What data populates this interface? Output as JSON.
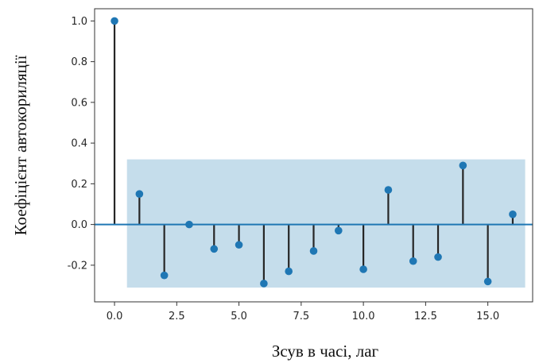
{
  "chart_data": {
    "type": "stem",
    "xlabel": "Зсув в часі, лаг",
    "ylabel": "Коефіцієнт автокориляції",
    "xlim": [
      -0.8,
      16.8
    ],
    "ylim": [
      -0.38,
      1.06
    ],
    "x_ticks": [
      0,
      2.5,
      5,
      7.5,
      10,
      12.5,
      15
    ],
    "x_tick_labels": [
      "0.0",
      "2.5",
      "5.0",
      "7.5",
      "10.0",
      "12.5",
      "15.0"
    ],
    "y_ticks": [
      -0.2,
      0,
      0.2,
      0.4,
      0.6,
      0.8,
      1.0
    ],
    "y_tick_labels": [
      "-0.2",
      "0.0",
      "0.2",
      "0.4",
      "0.6",
      "0.8",
      "1.0"
    ],
    "lags": [
      0,
      1,
      2,
      3,
      4,
      5,
      6,
      7,
      8,
      9,
      10,
      11,
      12,
      13,
      14,
      15,
      16
    ],
    "values": [
      1.0,
      0.15,
      -0.25,
      0.0,
      -0.12,
      -0.1,
      -0.29,
      -0.23,
      -0.13,
      -0.03,
      -0.22,
      0.17,
      -0.18,
      -0.16,
      0.29,
      -0.28,
      0.05
    ],
    "confidence_band": {
      "x_range": [
        0.5,
        16.5
      ],
      "lower": -0.31,
      "upper": 0.32
    },
    "grid": false,
    "colors": {
      "marker": "#1f77b4",
      "stem": "#262626",
      "band": "#a6cbe0",
      "zero_line": "#1f77b4"
    }
  }
}
